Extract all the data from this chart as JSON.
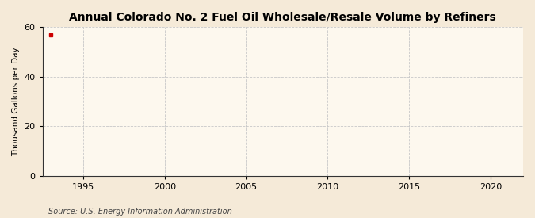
{
  "title": "Annual Colorado No. 2 Fuel Oil Wholesale/Resale Volume by Refiners",
  "ylabel": "Thousand Gallons per Day",
  "source": "Source: U.S. Energy Information Administration",
  "background_color": "#f5ead8",
  "plot_bg_color": "#fdf8ee",
  "data_x": [
    1993
  ],
  "data_y": [
    57.0
  ],
  "data_color": "#cc0000",
  "xlim": [
    1992.5,
    2022
  ],
  "ylim": [
    0,
    60
  ],
  "xticks": [
    1995,
    2000,
    2005,
    2010,
    2015,
    2020
  ],
  "yticks": [
    0,
    20,
    40,
    60
  ],
  "grid_color": "#c8c8c8",
  "grid_linestyle": "--",
  "grid_linewidth": 0.6,
  "title_fontsize": 10,
  "label_fontsize": 7.5,
  "tick_fontsize": 8,
  "source_fontsize": 7,
  "marker_size": 3.5
}
